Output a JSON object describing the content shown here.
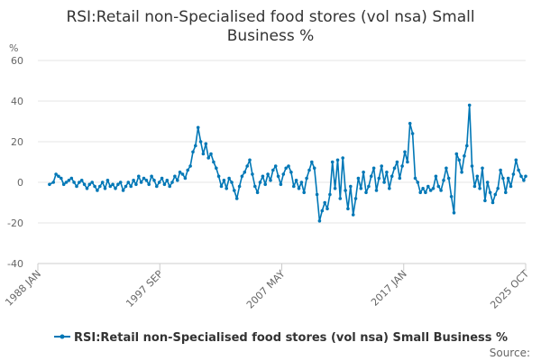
{
  "chart_data": {
    "type": "line",
    "title_line1": "RSI:Retail non-Specialised food stores (vol nsa) Small",
    "title_line2": "Business %",
    "y_unit": "%",
    "ylim": [
      -40,
      60
    ],
    "y_ticks": [
      -40,
      -20,
      0,
      20,
      40,
      60
    ],
    "x_tick_labels": [
      "1988 JAN",
      "1997 SEP",
      "2007 MAY",
      "2017 JAN",
      "2025 OCT"
    ],
    "xlim": [
      1988.0,
      2025.75
    ],
    "grid": true,
    "legend_position": "bottom",
    "legend_label": "RSI:Retail non-Specialised food stores (vol nsa) Small Business %",
    "source_label": "Source:",
    "series": [
      {
        "color": "#0077b6",
        "points": [
          [
            1988.9,
            -1
          ],
          [
            1989.2,
            0
          ],
          [
            1989.4,
            4
          ],
          [
            1989.6,
            3
          ],
          [
            1989.8,
            2
          ],
          [
            1990.0,
            -1
          ],
          [
            1990.2,
            0
          ],
          [
            1990.4,
            1
          ],
          [
            1990.6,
            2
          ],
          [
            1990.8,
            0
          ],
          [
            1991.0,
            -2
          ],
          [
            1991.2,
            0
          ],
          [
            1991.4,
            1
          ],
          [
            1991.6,
            -1
          ],
          [
            1991.8,
            -3
          ],
          [
            1992.0,
            -1
          ],
          [
            1992.2,
            0
          ],
          [
            1992.4,
            -2
          ],
          [
            1992.6,
            -4
          ],
          [
            1992.8,
            -2
          ],
          [
            1993.0,
            0
          ],
          [
            1993.2,
            -3
          ],
          [
            1993.4,
            1
          ],
          [
            1993.6,
            -2
          ],
          [
            1993.8,
            -1
          ],
          [
            1994.0,
            -3
          ],
          [
            1994.2,
            -1
          ],
          [
            1994.4,
            0
          ],
          [
            1994.6,
            -4
          ],
          [
            1994.8,
            -2
          ],
          [
            1995.0,
            0
          ],
          [
            1995.2,
            -2
          ],
          [
            1995.4,
            1
          ],
          [
            1995.6,
            -1
          ],
          [
            1995.8,
            3
          ],
          [
            1996.0,
            0
          ],
          [
            1996.2,
            2
          ],
          [
            1996.4,
            1
          ],
          [
            1996.6,
            -1
          ],
          [
            1996.8,
            3
          ],
          [
            1997.0,
            1
          ],
          [
            1997.2,
            -2
          ],
          [
            1997.4,
            0
          ],
          [
            1997.6,
            2
          ],
          [
            1997.8,
            -1
          ],
          [
            1998.0,
            1
          ],
          [
            1998.2,
            -2
          ],
          [
            1998.4,
            0
          ],
          [
            1998.6,
            3
          ],
          [
            1998.8,
            1
          ],
          [
            1999.0,
            5
          ],
          [
            1999.2,
            4
          ],
          [
            1999.4,
            2
          ],
          [
            1999.6,
            6
          ],
          [
            1999.8,
            8
          ],
          [
            2000.0,
            15
          ],
          [
            2000.2,
            18
          ],
          [
            2000.4,
            27
          ],
          [
            2000.6,
            20
          ],
          [
            2000.8,
            14
          ],
          [
            2001.0,
            19
          ],
          [
            2001.2,
            12
          ],
          [
            2001.4,
            14
          ],
          [
            2001.6,
            10
          ],
          [
            2001.8,
            7
          ],
          [
            2002.0,
            3
          ],
          [
            2002.2,
            -2
          ],
          [
            2002.4,
            1
          ],
          [
            2002.6,
            -3
          ],
          [
            2002.8,
            2
          ],
          [
            2003.0,
            0
          ],
          [
            2003.2,
            -4
          ],
          [
            2003.4,
            -8
          ],
          [
            2003.6,
            -2
          ],
          [
            2003.8,
            3
          ],
          [
            2004.0,
            5
          ],
          [
            2004.2,
            8
          ],
          [
            2004.4,
            11
          ],
          [
            2004.6,
            4
          ],
          [
            2004.8,
            -2
          ],
          [
            2005.0,
            -5
          ],
          [
            2005.2,
            0
          ],
          [
            2005.4,
            3
          ],
          [
            2005.6,
            -1
          ],
          [
            2005.8,
            4
          ],
          [
            2006.0,
            1
          ],
          [
            2006.2,
            6
          ],
          [
            2006.4,
            8
          ],
          [
            2006.6,
            3
          ],
          [
            2006.8,
            -1
          ],
          [
            2007.0,
            4
          ],
          [
            2007.2,
            7
          ],
          [
            2007.4,
            8
          ],
          [
            2007.6,
            5
          ],
          [
            2007.8,
            -2
          ],
          [
            2008.0,
            1
          ],
          [
            2008.2,
            -3
          ],
          [
            2008.4,
            0
          ],
          [
            2008.6,
            -5
          ],
          [
            2008.8,
            2
          ],
          [
            2009.0,
            6
          ],
          [
            2009.2,
            10
          ],
          [
            2009.4,
            7
          ],
          [
            2009.6,
            -6
          ],
          [
            2009.8,
            -19
          ],
          [
            2010.0,
            -14
          ],
          [
            2010.2,
            -10
          ],
          [
            2010.4,
            -13
          ],
          [
            2010.6,
            -6
          ],
          [
            2010.8,
            10
          ],
          [
            2011.0,
            -3
          ],
          [
            2011.2,
            11
          ],
          [
            2011.4,
            -8
          ],
          [
            2011.6,
            12
          ],
          [
            2011.8,
            -4
          ],
          [
            2012.0,
            -13
          ],
          [
            2012.2,
            -2
          ],
          [
            2012.4,
            -16
          ],
          [
            2012.6,
            -8
          ],
          [
            2012.8,
            2
          ],
          [
            2013.0,
            -3
          ],
          [
            2013.2,
            5
          ],
          [
            2013.4,
            -5
          ],
          [
            2013.6,
            -2
          ],
          [
            2013.8,
            3
          ],
          [
            2014.0,
            7
          ],
          [
            2014.2,
            -4
          ],
          [
            2014.4,
            2
          ],
          [
            2014.6,
            8
          ],
          [
            2014.8,
            0
          ],
          [
            2015.0,
            5
          ],
          [
            2015.2,
            -3
          ],
          [
            2015.4,
            3
          ],
          [
            2015.6,
            7
          ],
          [
            2015.8,
            10
          ],
          [
            2016.0,
            2
          ],
          [
            2016.2,
            8
          ],
          [
            2016.4,
            15
          ],
          [
            2016.6,
            10
          ],
          [
            2016.8,
            29
          ],
          [
            2017.0,
            24
          ],
          [
            2017.2,
            2
          ],
          [
            2017.4,
            0
          ],
          [
            2017.6,
            -5
          ],
          [
            2017.8,
            -3
          ],
          [
            2018.0,
            -5
          ],
          [
            2018.2,
            -2
          ],
          [
            2018.4,
            -4
          ],
          [
            2018.6,
            -3
          ],
          [
            2018.8,
            3
          ],
          [
            2019.0,
            -2
          ],
          [
            2019.2,
            -4
          ],
          [
            2019.4,
            1
          ],
          [
            2019.6,
            7
          ],
          [
            2019.8,
            2
          ],
          [
            2020.0,
            -7
          ],
          [
            2020.2,
            -15
          ],
          [
            2020.4,
            14
          ],
          [
            2020.6,
            11
          ],
          [
            2020.8,
            5
          ],
          [
            2021.0,
            13
          ],
          [
            2021.2,
            18
          ],
          [
            2021.4,
            38
          ],
          [
            2021.6,
            8
          ],
          [
            2021.8,
            -2
          ],
          [
            2022.0,
            3
          ],
          [
            2022.2,
            -3
          ],
          [
            2022.4,
            7
          ],
          [
            2022.6,
            -9
          ],
          [
            2022.8,
            0
          ],
          [
            2023.0,
            -5
          ],
          [
            2023.2,
            -10
          ],
          [
            2023.4,
            -6
          ],
          [
            2023.6,
            -3
          ],
          [
            2023.8,
            6
          ],
          [
            2024.0,
            2
          ],
          [
            2024.2,
            -5
          ],
          [
            2024.4,
            2
          ],
          [
            2024.6,
            -2
          ],
          [
            2024.8,
            4
          ],
          [
            2025.0,
            11
          ],
          [
            2025.2,
            6
          ],
          [
            2025.4,
            3
          ],
          [
            2025.6,
            1
          ],
          [
            2025.75,
            3
          ]
        ]
      }
    ]
  }
}
